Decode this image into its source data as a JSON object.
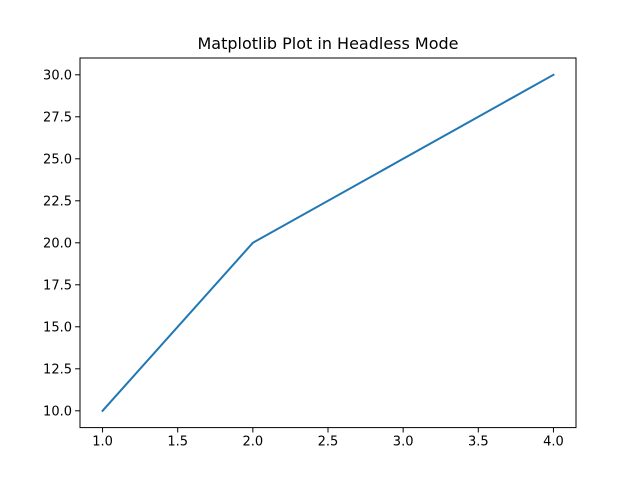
{
  "colors": {
    "line": "#1f77b4",
    "axes": "#000000",
    "background": "#ffffff"
  },
  "chart_data": {
    "type": "line",
    "title": "Matplotlib Plot in Headless Mode",
    "xlabel": "",
    "ylabel": "",
    "grid": false,
    "legend": "none",
    "xlim": [
      0.85,
      4.15
    ],
    "ylim": [
      9.0,
      31.0
    ],
    "xticks": [
      1.0,
      1.5,
      2.0,
      2.5,
      3.0,
      3.5,
      4.0
    ],
    "xtick_labels": [
      "1.0",
      "1.5",
      "2.0",
      "2.5",
      "3.0",
      "3.5",
      "4.0"
    ],
    "yticks": [
      10.0,
      12.5,
      15.0,
      17.5,
      20.0,
      22.5,
      25.0,
      27.5,
      30.0
    ],
    "ytick_labels": [
      "10.0",
      "12.5",
      "15.0",
      "17.5",
      "20.0",
      "22.5",
      "25.0",
      "27.5",
      "30.0"
    ],
    "x": [
      1,
      2,
      3,
      4
    ],
    "series": [
      {
        "values": [
          10,
          20,
          25,
          30
        ]
      }
    ]
  }
}
